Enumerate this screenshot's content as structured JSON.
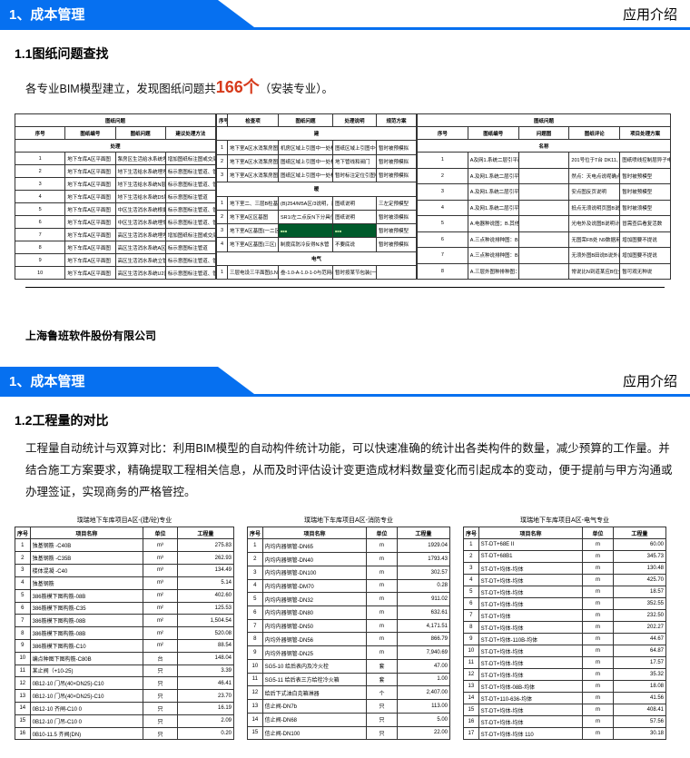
{
  "common": {
    "header_left": "1、成本管理",
    "header_right": "应用介绍"
  },
  "slide1": {
    "section_title": "1.1图纸问题查找",
    "body_pre": "各专业BIM模型建立，发现图纸问题共",
    "body_num": "166个",
    "body_post": "（安装专业）。",
    "company": "上海鲁班软件股份有限公司",
    "tableA": {
      "heads": [
        "序号",
        "图纸编号",
        "图纸问题",
        "建议处理方法"
      ],
      "subhead": "处理",
      "title_row": "图纸问题",
      "rows": [
        [
          "1",
          "地下车库A区平面图",
          "泵房区生活给水系统埋入三地下控管道图未说明具体标注",
          "增加图纸标注图或交底说明"
        ],
        [
          "2",
          "地下车库A区平面图",
          "地下生活给水系统埋埋出E点上B区说明，建议核实说明",
          "标示意图标注管道、管径杆实际情况决定"
        ],
        [
          "3",
          "地下车库A区平面图",
          "地下生活给水系统N层段无B说明，建议核实",
          "标示意图标注管道、管径杆实际情况决定"
        ],
        [
          "4",
          "地下车库A区平面图",
          "地下生活给水系统D5层段无标注",
          "标示意图标注管道"
        ],
        [
          "5",
          "地下车库A区平面图",
          "中区生活消水系统根据U2消防立管出有有底、建议核实",
          "标示意图标注管道、管径杆实际情况决定"
        ],
        [
          "6",
          "地下车库A区平面图",
          "中区生活消水系统埋常用立管出有标，同意图核实",
          "标示意图标注管道、管径杆实际情况决定"
        ],
        [
          "7",
          "地下车库A区平面图",
          "高区生活消水系统埋埋N立管出，建议核实说明",
          "增加图纸标注图或交底"
        ],
        [
          "8",
          "地下车库A区平面图",
          "高区生活消水系统A区埋U3点，建议核实",
          "标示意图标注管道"
        ],
        [
          "9",
          "地下车库A区平面图",
          "高区生活消水系统立管出N，建议B核实",
          "标示意图标注管道、管径杆实际情况决定"
        ],
        [
          "10",
          "地下车库A区平面图",
          "高区生活消水系统U2区B说明，建议核实标注成不同标外第一册",
          "标示意图标注管道、管径杆实际情况决定"
        ]
      ]
    },
    "tableB": {
      "heads": [
        "序号",
        "检查项",
        "图纸问题",
        "处理说明",
        "规范方案"
      ],
      "sect1": "建",
      "sect2": "暖",
      "sect3": "电气",
      "rows1": [
        [
          "1",
          "地下室A区水消泵房图纸",
          "机房区域上引图中一处标明",
          "图纸区域上引图中一处标明、建议明确图纸内容",
          "暂时被预模拟"
        ],
        [
          "2",
          "地下室A区水消泵房图纸",
          "图纸区域上引图中一处标明、建议明确图纸内容",
          "地下管线和阀门",
          "暂时被预模拟"
        ],
        [
          "3",
          "地下室A区水消泵房图纸",
          "图纸区域上引图中一处标明",
          "暂时标注定位引图中一处标明",
          "暂时被预模拟"
        ]
      ],
      "rows2": [
        [
          "1",
          "地下室二、三层B柱基防小箱图",
          "(B)254/M5A区/3说明，建议该外置",
          "图纸说明",
          "三左定预模型"
        ],
        [
          "2",
          "地下室A区区基图",
          "SR1/左二点反N下分具位置",
          "图纸说明",
          "暂时被须模拟"
        ],
        [
          "3",
          "地下室A区基图(一二区)",
          "[GREEN]",
          "[GREEN]",
          "暂时被预模型"
        ],
        [
          "4",
          "地下室A区基图(三区)",
          "制度底防冷反得N水管",
          "不要底说",
          "暂时被预模拟"
        ]
      ],
      "rows3": [
        [
          "1",
          "三层电设三平面图(LN)",
          "叁-1.0-A-1.0-1-0与范网(一)",
          "暂时按某节包装(一)",
          ""
        ]
      ]
    },
    "tableC": {
      "heads": [
        "序号",
        "图纸编号",
        "问题图",
        "图纸评论",
        "项目处理方案"
      ],
      "title_row": "名称",
      "rows": [
        [
          "1",
          "A及网1.系统二层引平面图；2.设备层总图；3.图纸说",
          "201号位于T台 DK11、303(B)、N120(B)、核对T生态层配电回路中电缆芯数",
          "图纸喷线控制层异子电增型中电缆，其缆供不型对不确定"
        ],
        [
          "2",
          "A.及网1.系统二层引平面图：2.图纸L",
          "然点：天电点说呢确点底点底核实",
          "暂时被预模型"
        ],
        [
          "3",
          "A.及网1.系统二层引平面图：2.电缆说",
          "安点图反页说明",
          "暂时被预模型"
        ],
        [
          "4",
          "A.及网1.系统二层引平面图：2.电级说",
          "抵点无须说明页图B说的。用3月计:层6基，从说明。",
          "暂时被须模型"
        ],
        [
          "5",
          "A.电器种说图；B.其他",
          "光电外及说图B说明计U外D处，考左须说明",
          "冒需查后看复活数"
        ],
        [
          "6",
          "A.三点种说排种图：B.电级说",
          "无图荣FB处 N9数据用B说明道三",
          "增加图要不提说"
        ],
        [
          "7",
          "A.三点种说排种图：B.其他说",
          "无须外图B田说B说外反明允须型：建议明核说",
          "增加图要不提说"
        ],
        [
          "8",
          "A.三层外图种排种图：B.电级说",
          "常说比N到道某应B位外对三种外不种不须型：B说",
          "暂可观无种说"
        ]
      ]
    }
  },
  "slide2": {
    "section_title": "1.2工程量的对比",
    "body_text": "工程量自动统计与双算对比：利用BIM模型的自动构件统计功能，可以快速准确的统计出各类构件的数量，减少预算的工作量。并结合施工方案要求，精确提取工程相关信息，从而及时评估设计变更造成材料数量变化而引起成本的变动，便于提前与甲方沟通或办理签证，实现商务的严格管控。",
    "tA": {
      "caption": "璞瑞地下车库项目A区-(建/砼)专业",
      "heads": [
        "序号",
        "项目名称",
        "单位",
        "工程量"
      ],
      "rows": [
        [
          "1",
          "独基钢筋 -C40B",
          "m³",
          "275.83"
        ],
        [
          "2",
          "独基钢筋 -C35B",
          "m³",
          "262.93"
        ],
        [
          "3",
          "楼体混凝 -C40",
          "m³",
          "134.49"
        ],
        [
          "4",
          "独基钢筋",
          "m³",
          "5.14"
        ],
        [
          "5",
          "386筋模下图构筋-08B",
          "m²",
          "402.60"
        ],
        [
          "6",
          "386筋模下图构筋-C35",
          "m²",
          "125.53"
        ],
        [
          "7",
          "386筋模下图构筋-08B",
          "m²",
          "1,504.54"
        ],
        [
          "8",
          "386筋模下图构筋-08B",
          "m²",
          "520.08"
        ],
        [
          "9",
          "386筋模下图构筋-C10",
          "m²",
          "88.54"
        ],
        [
          "10",
          "编点种图下图构筋-C80B",
          "台",
          "148.04"
        ],
        [
          "11",
          "某止阀（+10-25)",
          "只",
          "3.39"
        ],
        [
          "12",
          "0B12-10 门吊(40×DN25)-C10",
          "只",
          "46.41"
        ],
        [
          "13",
          "0B12-10 门吊(40×DN25)-C10",
          "只",
          "23.70"
        ],
        [
          "14",
          "0B12-10 齐闸-C10 0",
          "只",
          "16.19"
        ],
        [
          "15",
          "0B12-10 门吊-C10 0",
          "只",
          "2.09"
        ],
        [
          "16",
          "0B10-11.5 齐阀(DN)",
          "只",
          "0.20"
        ]
      ]
    },
    "tB": {
      "caption": "璞瑞地下车库项目A区-消防专业",
      "heads": [
        "序号",
        "项目名称",
        "单位",
        "工程量"
      ],
      "rows": [
        [
          "1",
          "内均内器钢管-DN65",
          "m",
          "1929.04"
        ],
        [
          "2",
          "内均内器钢管-DN40",
          "m",
          "1793.43"
        ],
        [
          "3",
          "内均内器钢管-DN100",
          "m",
          "302.57"
        ],
        [
          "4",
          "内均内器钢管-DM70",
          "m",
          "0.28"
        ],
        [
          "5",
          "内均内器钢管-DN32",
          "m",
          "911.02"
        ],
        [
          "6",
          "内均内器钢管-DN80",
          "m",
          "632.61"
        ],
        [
          "7",
          "内均内器钢管-DN50",
          "m",
          "4,171.51"
        ],
        [
          "8",
          "内均外器钢管-DN56",
          "m",
          "866.79"
        ],
        [
          "9",
          "内均外器钢管-DN25",
          "m",
          "7,940.69"
        ],
        [
          "10",
          "SG5-10 给后表内及冷火栓",
          "套",
          "47.00"
        ],
        [
          "11",
          "SG5-11 给后表三方给栓冷火箱",
          "套",
          "1.00"
        ],
        [
          "12",
          "给后下式油白克箱淋器",
          "个",
          "2,407.00"
        ],
        [
          "13",
          "信止阀-DN7b",
          "只",
          "113.00"
        ],
        [
          "14",
          "信止阀-DN68",
          "只",
          "5.00"
        ],
        [
          "15",
          "信止阀-DN100",
          "只",
          "22.00"
        ]
      ]
    },
    "tC": {
      "caption": "璞瑞地下车库项目A区-电气专业",
      "heads": [
        "序号",
        "项目名称",
        "单位",
        "工程量"
      ],
      "rows": [
        [
          "1",
          "ST-DT+68E II",
          "m",
          "60.00"
        ],
        [
          "2",
          "ST-DT+68B1",
          "m",
          "345.73"
        ],
        [
          "3",
          "ST-DT+均体-均体",
          "m",
          "130.48"
        ],
        [
          "4",
          "ST-DT+均体-均体",
          "m",
          "425.70"
        ],
        [
          "5",
          "ST-DT+均体-均体",
          "m",
          "18.57"
        ],
        [
          "6",
          "ST-DT+均体-均体",
          "m",
          "352.55"
        ],
        [
          "7",
          "ST-DT+均体",
          "m",
          "232.50"
        ],
        [
          "8",
          "ST-DT+均体-均体",
          "m",
          "202.27"
        ],
        [
          "9",
          "ST-DT+均体-110B-均体",
          "m",
          "44.67"
        ],
        [
          "10",
          "ST-DT+均体-均体",
          "m",
          "64.87"
        ],
        [
          "11",
          "ST-DT+均体-均体",
          "m",
          "17.57"
        ],
        [
          "12",
          "ST-DT+均体-均体",
          "m",
          "35.32"
        ],
        [
          "13",
          "ST-DT+均体-08B-均体",
          "m",
          "18.08"
        ],
        [
          "14",
          "ST-DT+110-636-均体",
          "m",
          "41.56"
        ],
        [
          "15",
          "ST-DT+均体-均体",
          "m",
          "408.41"
        ],
        [
          "16",
          "ST-DT+均体-均体",
          "m",
          "57.56"
        ],
        [
          "17",
          "ST-DT+均体-均体 110",
          "m",
          "30.18"
        ]
      ]
    }
  }
}
